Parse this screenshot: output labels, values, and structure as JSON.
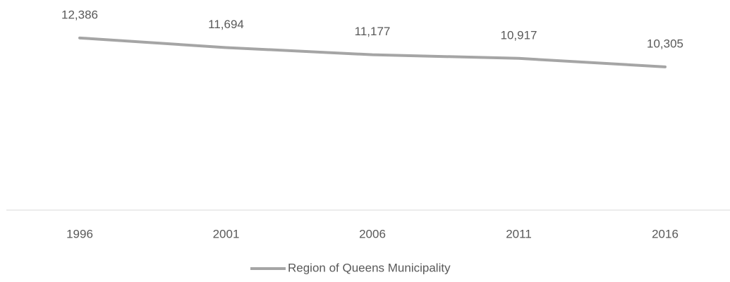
{
  "chart_data": {
    "type": "line",
    "categories": [
      "1996",
      "2001",
      "2006",
      "2011",
      "2016"
    ],
    "series": [
      {
        "name": "Region of Queens Municipality",
        "color": "#a5a5a5",
        "values": [
          12386,
          11694,
          11177,
          10917,
          10305
        ],
        "value_labels": [
          "12,386",
          "11,694",
          "11,177",
          "10,917",
          "10,305"
        ]
      }
    ],
    "ylim": [
      0,
      14000
    ],
    "legend": "bottom"
  }
}
